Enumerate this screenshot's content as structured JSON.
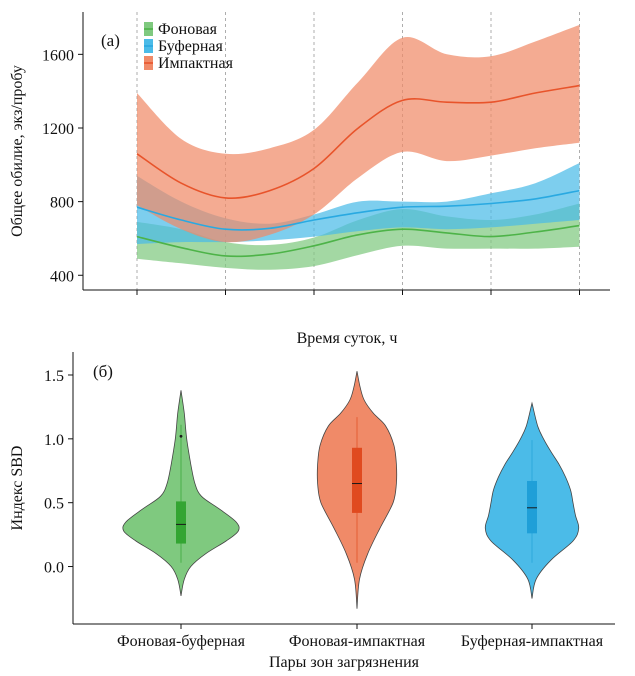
{
  "chart_data": [
    {
      "type": "line",
      "panel_label": "(a)",
      "xlabel": "Время суток, ч",
      "ylabel": "Общее обилие, экз/пробу",
      "x": [
        0,
        1,
        2,
        3,
        4,
        5
      ],
      "x_tick_labels": [
        "",
        "",
        "",
        "",
        "",
        ""
      ],
      "yticks": [
        400,
        800,
        1200,
        1600
      ],
      "ylim": [
        320,
        1830
      ],
      "grid": "vertical dashed",
      "legend": "top-left",
      "series": [
        {
          "name": "Фоновая",
          "color": "#4db348",
          "band_color": "#7fc97f",
          "x": [
            0,
            0.5,
            1,
            1.5,
            2,
            2.5,
            3,
            3.5,
            4,
            4.5,
            5
          ],
          "mean": [
            610,
            550,
            505,
            515,
            560,
            620,
            650,
            630,
            610,
            635,
            670
          ],
          "lower": [
            490,
            465,
            440,
            430,
            450,
            510,
            560,
            545,
            545,
            545,
            555
          ],
          "upper": [
            690,
            650,
            580,
            565,
            605,
            700,
            760,
            720,
            700,
            730,
            790
          ]
        },
        {
          "name": "Буферная",
          "color": "#29a9e1",
          "band_color": "#4bbbe8",
          "x": [
            0,
            0.5,
            1,
            1.5,
            2,
            2.5,
            3,
            3.5,
            4,
            4.5,
            5
          ],
          "mean": [
            770,
            700,
            650,
            655,
            700,
            740,
            770,
            775,
            790,
            815,
            860
          ],
          "lower": [
            570,
            580,
            580,
            590,
            610,
            640,
            660,
            650,
            660,
            680,
            700
          ],
          "upper": [
            940,
            800,
            710,
            680,
            730,
            800,
            800,
            800,
            845,
            900,
            1010
          ]
        },
        {
          "name": "Импактная",
          "color": "#e8542b",
          "band_color": "#f08a68",
          "x": [
            0,
            0.5,
            1,
            1.5,
            2,
            2.5,
            3,
            3.5,
            4,
            4.5,
            5
          ],
          "mean": [
            1060,
            900,
            820,
            860,
            980,
            1200,
            1350,
            1340,
            1340,
            1390,
            1430
          ],
          "lower": [
            780,
            650,
            580,
            620,
            730,
            930,
            1070,
            1020,
            1050,
            1090,
            1120
          ],
          "upper": [
            1390,
            1140,
            1060,
            1090,
            1190,
            1450,
            1690,
            1600,
            1590,
            1670,
            1760
          ]
        }
      ]
    },
    {
      "type": "violin",
      "panel_label": "(б)",
      "xlabel": "Пары зон загрязнения",
      "ylabel": "Индекс SBD",
      "yticks": [
        "0.0",
        "0.5",
        "1.0",
        "1.5"
      ],
      "ylim": [
        -0.45,
        1.68
      ],
      "categories": [
        "Фоновая-буферная",
        "Фоновая-импактная",
        "Буферная-импактная"
      ],
      "violins": [
        {
          "name": "Фоновая-буферная",
          "fill": "#7fc97f",
          "box_color": "#33a532",
          "min": -0.23,
          "max": 1.38,
          "q1": 0.18,
          "median": 0.33,
          "q3": 0.51,
          "whisker_low": 0.03,
          "whisker_high": 1.11,
          "outliers": [
            1.02
          ],
          "profile": [
            [
              -0.23,
              0.0
            ],
            [
              -0.1,
              0.04
            ],
            [
              0.0,
              0.12
            ],
            [
              0.1,
              0.3
            ],
            [
              0.2,
              0.55
            ],
            [
              0.28,
              0.7
            ],
            [
              0.35,
              0.67
            ],
            [
              0.45,
              0.47
            ],
            [
              0.55,
              0.25
            ],
            [
              0.65,
              0.17
            ],
            [
              0.8,
              0.12
            ],
            [
              1.0,
              0.07
            ],
            [
              1.2,
              0.04
            ],
            [
              1.38,
              0.0
            ]
          ]
        },
        {
          "name": "Фоновая-импактная",
          "fill": "#f08a68",
          "box_color": "#e04a1f",
          "min": -0.33,
          "max": 1.53,
          "q1": 0.42,
          "median": 0.65,
          "q3": 0.93,
          "whisker_low": 0.03,
          "whisker_high": 1.17,
          "outliers": [],
          "profile": [
            [
              -0.33,
              0.0
            ],
            [
              -0.1,
              0.03
            ],
            [
              0.1,
              0.13
            ],
            [
              0.3,
              0.28
            ],
            [
              0.5,
              0.44
            ],
            [
              0.65,
              0.48
            ],
            [
              0.8,
              0.48
            ],
            [
              0.95,
              0.45
            ],
            [
              1.1,
              0.35
            ],
            [
              1.2,
              0.2
            ],
            [
              1.3,
              0.09
            ],
            [
              1.4,
              0.04
            ],
            [
              1.53,
              0.0
            ]
          ]
        },
        {
          "name": "Буферная-импактная",
          "fill": "#4bbbe8",
          "box_color": "#1f9fd8",
          "min": -0.25,
          "max": 1.28,
          "q1": 0.26,
          "median": 0.46,
          "q3": 0.67,
          "whisker_low": 0.03,
          "whisker_high": 0.99,
          "outliers": [],
          "profile": [
            [
              -0.25,
              0.0
            ],
            [
              -0.1,
              0.05
            ],
            [
              0.05,
              0.23
            ],
            [
              0.2,
              0.5
            ],
            [
              0.3,
              0.57
            ],
            [
              0.4,
              0.53
            ],
            [
              0.5,
              0.5
            ],
            [
              0.6,
              0.47
            ],
            [
              0.7,
              0.41
            ],
            [
              0.8,
              0.33
            ],
            [
              0.9,
              0.23
            ],
            [
              1.0,
              0.14
            ],
            [
              1.1,
              0.07
            ],
            [
              1.28,
              0.0
            ]
          ]
        }
      ]
    }
  ]
}
